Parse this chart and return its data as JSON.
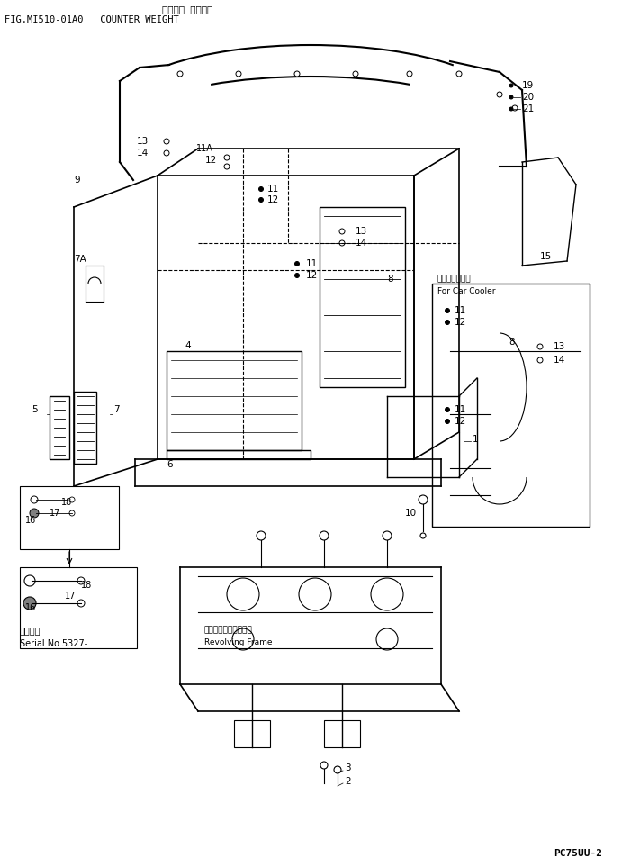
{
  "bg_color": "#ffffff",
  "line_color": "#000000",
  "title_line1": "カウンタ ウエイト",
  "title_line2": "FIG.MI510-01A0   COUNTER WEIGHT",
  "model": "PC75UU-2",
  "fig_width": 6.91,
  "fig_height": 9.63,
  "dpi": 100
}
